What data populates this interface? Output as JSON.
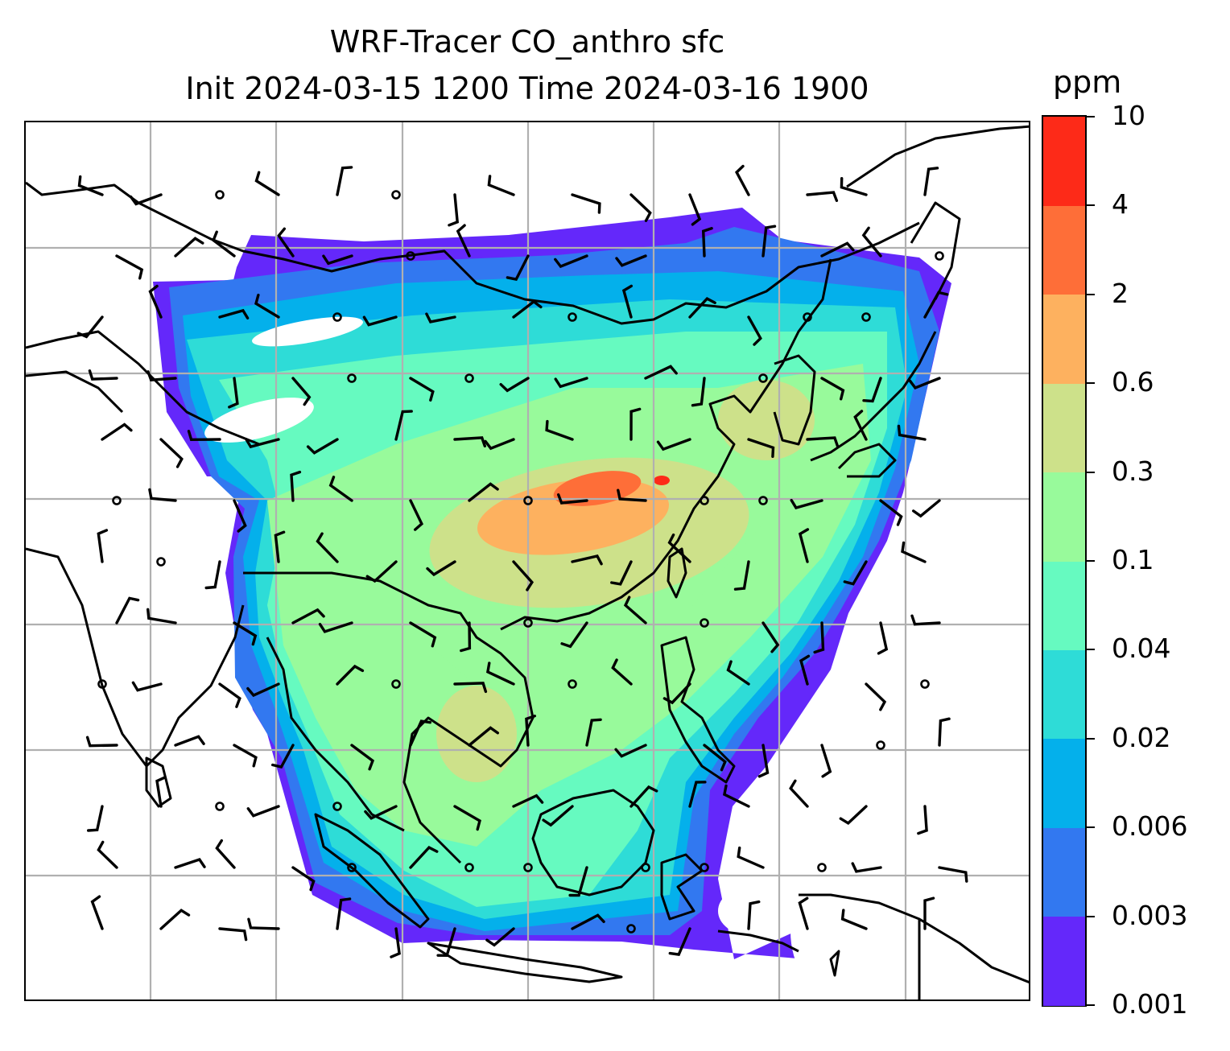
{
  "map": {
    "title_line1": "WRF-Tracer CO_anthro sfc",
    "title_line2": "Init 2024-03-15 1200 Time 2024-03-16 1900",
    "variable": "CO_anthro",
    "level": "sfc",
    "init_time": "2024-03-15 1200",
    "valid_time": "2024-03-16 1900",
    "projection": "Plate Carree (lat/lon)",
    "gridlines": true,
    "overlays": [
      "coastlines",
      "country borders",
      "wind barbs",
      "calm-wind circles"
    ]
  },
  "colorbar": {
    "unit": "ppm",
    "levels": [
      "0.001",
      "0.003",
      "0.006",
      "0.02",
      "0.04",
      "0.1",
      "0.3",
      "0.6",
      "2",
      "4",
      "10"
    ],
    "colors": [
      "#6428fa",
      "#3278f0",
      "#04b0eb",
      "#2edcd7",
      "#66fac0",
      "#98fa9b",
      "#cde18a",
      "#fdb15f",
      "#fe6e38",
      "#fd2a18"
    ]
  },
  "colors": {
    "gridline": "#b0b0b0",
    "coastline": "#000000",
    "barb": "#000000"
  }
}
